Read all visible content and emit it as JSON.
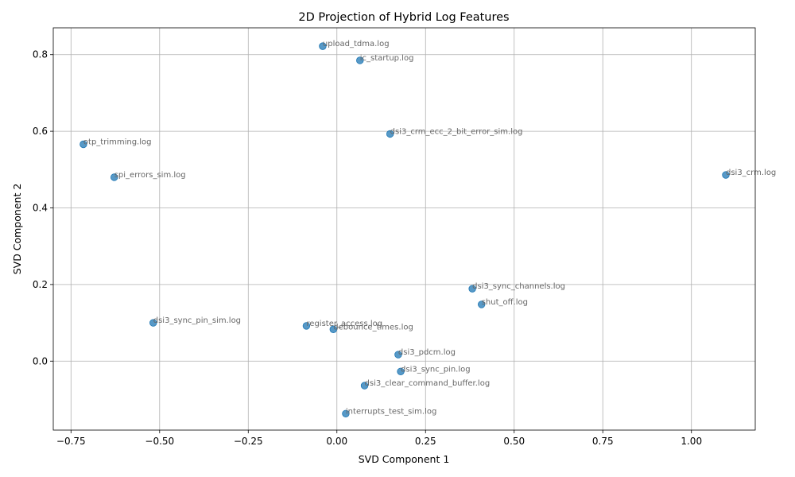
{
  "chart_data": {
    "type": "scatter",
    "title": "2D Projection of Hybrid Log Features",
    "xlabel": "SVD Component 1",
    "ylabel": "SVD Component 2",
    "xlim": [
      -0.8,
      1.18
    ],
    "ylim": [
      -0.18,
      0.87
    ],
    "xticks": [
      -0.75,
      -0.5,
      -0.25,
      0.0,
      0.25,
      0.5,
      0.75,
      1.0
    ],
    "xtick_labels": [
      "−0.75",
      "−0.50",
      "−0.25",
      "0.00",
      "0.25",
      "0.50",
      "0.75",
      "1.00"
    ],
    "yticks": [
      0.0,
      0.2,
      0.4,
      0.6,
      0.8
    ],
    "ytick_labels": [
      "0.0",
      "0.2",
      "0.4",
      "0.6",
      "0.8"
    ],
    "grid": true,
    "marker_color": "#1f77b4",
    "label_color": "#666666",
    "points": [
      {
        "label": "upload_tdma.log",
        "x": -0.04,
        "y": 0.822
      },
      {
        "label": "ic_startup.log",
        "x": 0.065,
        "y": 0.785
      },
      {
        "label": "dsi3_crm_ecc_2_bit_error_sim.log",
        "x": 0.15,
        "y": 0.593
      },
      {
        "label": "otp_trimming.log",
        "x": -0.715,
        "y": 0.566
      },
      {
        "label": "spi_errors_sim.log",
        "x": -0.628,
        "y": 0.48
      },
      {
        "label": "dsi3_crm.log",
        "x": 1.097,
        "y": 0.486
      },
      {
        "label": "dsi3_sync_channels.log",
        "x": 0.382,
        "y": 0.189
      },
      {
        "label": "shut_off.log",
        "x": 0.408,
        "y": 0.148
      },
      {
        "label": "dsi3_sync_pin_sim.log",
        "x": -0.518,
        "y": 0.1
      },
      {
        "label": "register_access.log",
        "x": -0.086,
        "y": 0.092
      },
      {
        "label": "debounce_times.log",
        "x": -0.01,
        "y": 0.083
      },
      {
        "label": "dsi3_pdcm.log",
        "x": 0.173,
        "y": 0.017
      },
      {
        "label": "dsi3_sync_pin.log",
        "x": 0.18,
        "y": -0.027
      },
      {
        "label": "dsi3_clear_command_buffer.log",
        "x": 0.078,
        "y": -0.064
      },
      {
        "label": "interrupts_test_sim.log",
        "x": 0.025,
        "y": -0.137
      }
    ]
  }
}
